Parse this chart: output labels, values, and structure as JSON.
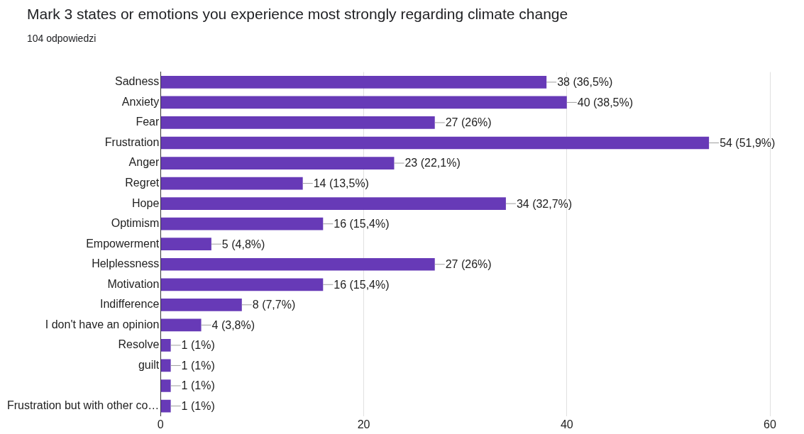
{
  "chart_data": {
    "type": "bar",
    "orientation": "horizontal",
    "title": "Mark 3 states or emotions you experience most strongly regarding climate change",
    "subtitle": "104 odpowiedzi",
    "categories": [
      "Sadness",
      "Anxiety",
      "Fear",
      "Frustration",
      "Anger",
      "Regret",
      "Hope",
      "Optimism",
      "Empowerment",
      "Helplessness",
      "Motivation",
      "Indifference",
      "I don't have an opinion",
      "Resolve",
      "guilt",
      null,
      "Frustration but with other co…"
    ],
    "values": [
      38,
      40,
      27,
      54,
      23,
      14,
      34,
      16,
      5,
      27,
      16,
      8,
      4,
      1,
      1,
      1,
      1
    ],
    "value_labels": [
      "38 (36,5%)",
      "40 (38,5%)",
      "27 (26%)",
      "54 (51,9%)",
      "23 (22,1%)",
      "14 (13,5%)",
      "34 (32,7%)",
      "16 (15,4%)",
      "5 (4,8%)",
      "27 (26%)",
      "16 (15,4%)",
      "8 (7,7%)",
      "4 (3,8%)",
      "1 (1%)",
      "1 (1%)",
      "1 (1%)",
      "1 (1%)"
    ],
    "color": "#673ab7",
    "xlim": [
      0,
      60
    ],
    "xticks": [
      0,
      20,
      40,
      60
    ],
    "grid": "x",
    "legend": false
  }
}
